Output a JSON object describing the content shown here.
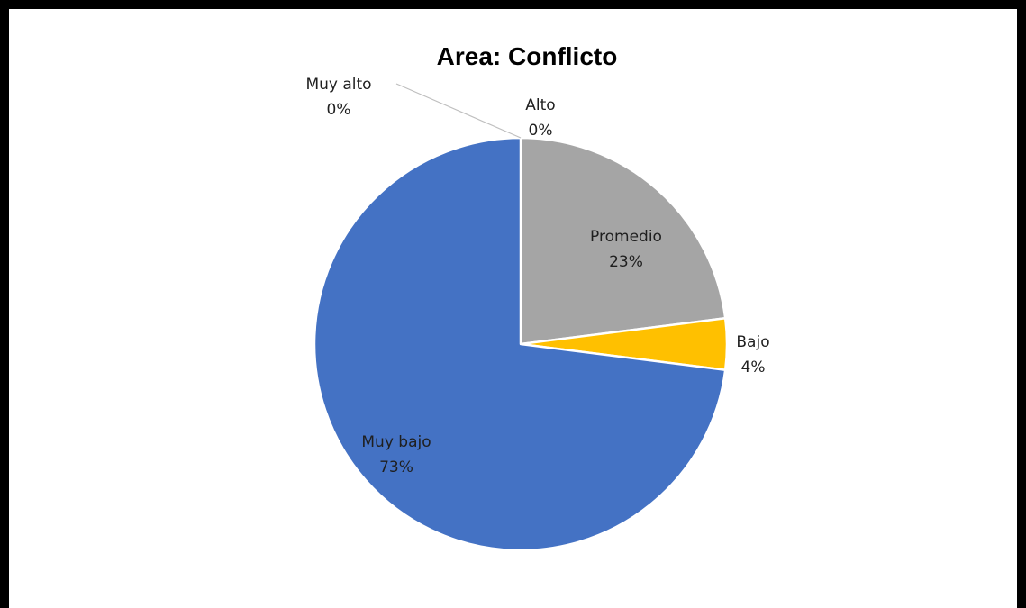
{
  "chart_data": {
    "type": "pie",
    "title": "Area: Conflicto",
    "slices": [
      {
        "label": "Alto",
        "value": 0,
        "pct_label": "0%",
        "color": "#ED7D31"
      },
      {
        "label": "Promedio",
        "value": 23,
        "pct_label": "23%",
        "color": "#A5A5A5"
      },
      {
        "label": "Bajo",
        "value": 4,
        "pct_label": "4%",
        "color": "#FFC000"
      },
      {
        "label": "Muy bajo",
        "value": 73,
        "pct_label": "73%",
        "color": "#4472C4"
      },
      {
        "label": "Muy alto",
        "value": 0,
        "pct_label": "0%",
        "color": "#5B9BD5"
      }
    ]
  }
}
